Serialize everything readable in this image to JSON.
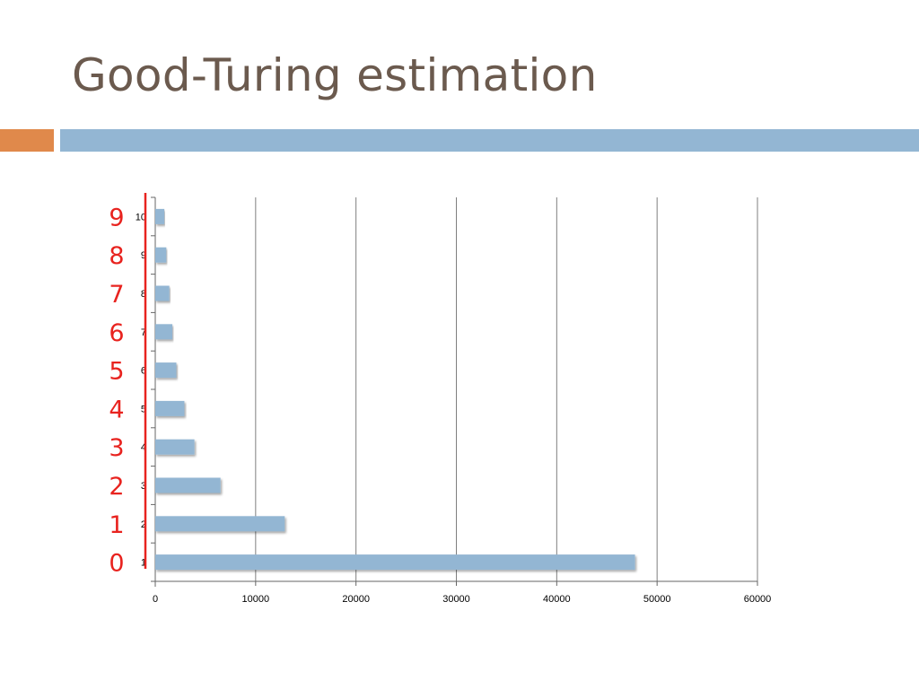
{
  "slide": {
    "title": "Good-Turing estimation",
    "colors": {
      "title": "#6b5a4e",
      "accent_orange": "#e0894b",
      "accent_blue": "#93b6d3",
      "bar_fill": "#93b6d3",
      "gridline": "#7f7f7f",
      "annotation_red": "#e8231f"
    }
  },
  "chart_data": {
    "type": "bar",
    "orientation": "horizontal",
    "categories": [
      "1",
      "2",
      "3",
      "4",
      "5",
      "6",
      "7",
      "8",
      "9",
      "10"
    ],
    "values": [
      47800,
      12900,
      6500,
      3900,
      2900,
      2100,
      1700,
      1400,
      1100,
      900
    ],
    "xlim": [
      0,
      60000
    ],
    "x_ticks": [
      "0",
      "10000",
      "20000",
      "30000",
      "40000",
      "50000",
      "60000"
    ],
    "grid": "vertical",
    "title": "",
    "xlabel": "",
    "ylabel": "",
    "annotation": {
      "labels": [
        "0",
        "1",
        "2",
        "3",
        "4",
        "5",
        "6",
        "7",
        "8",
        "9"
      ],
      "color": "#e8231f"
    }
  }
}
